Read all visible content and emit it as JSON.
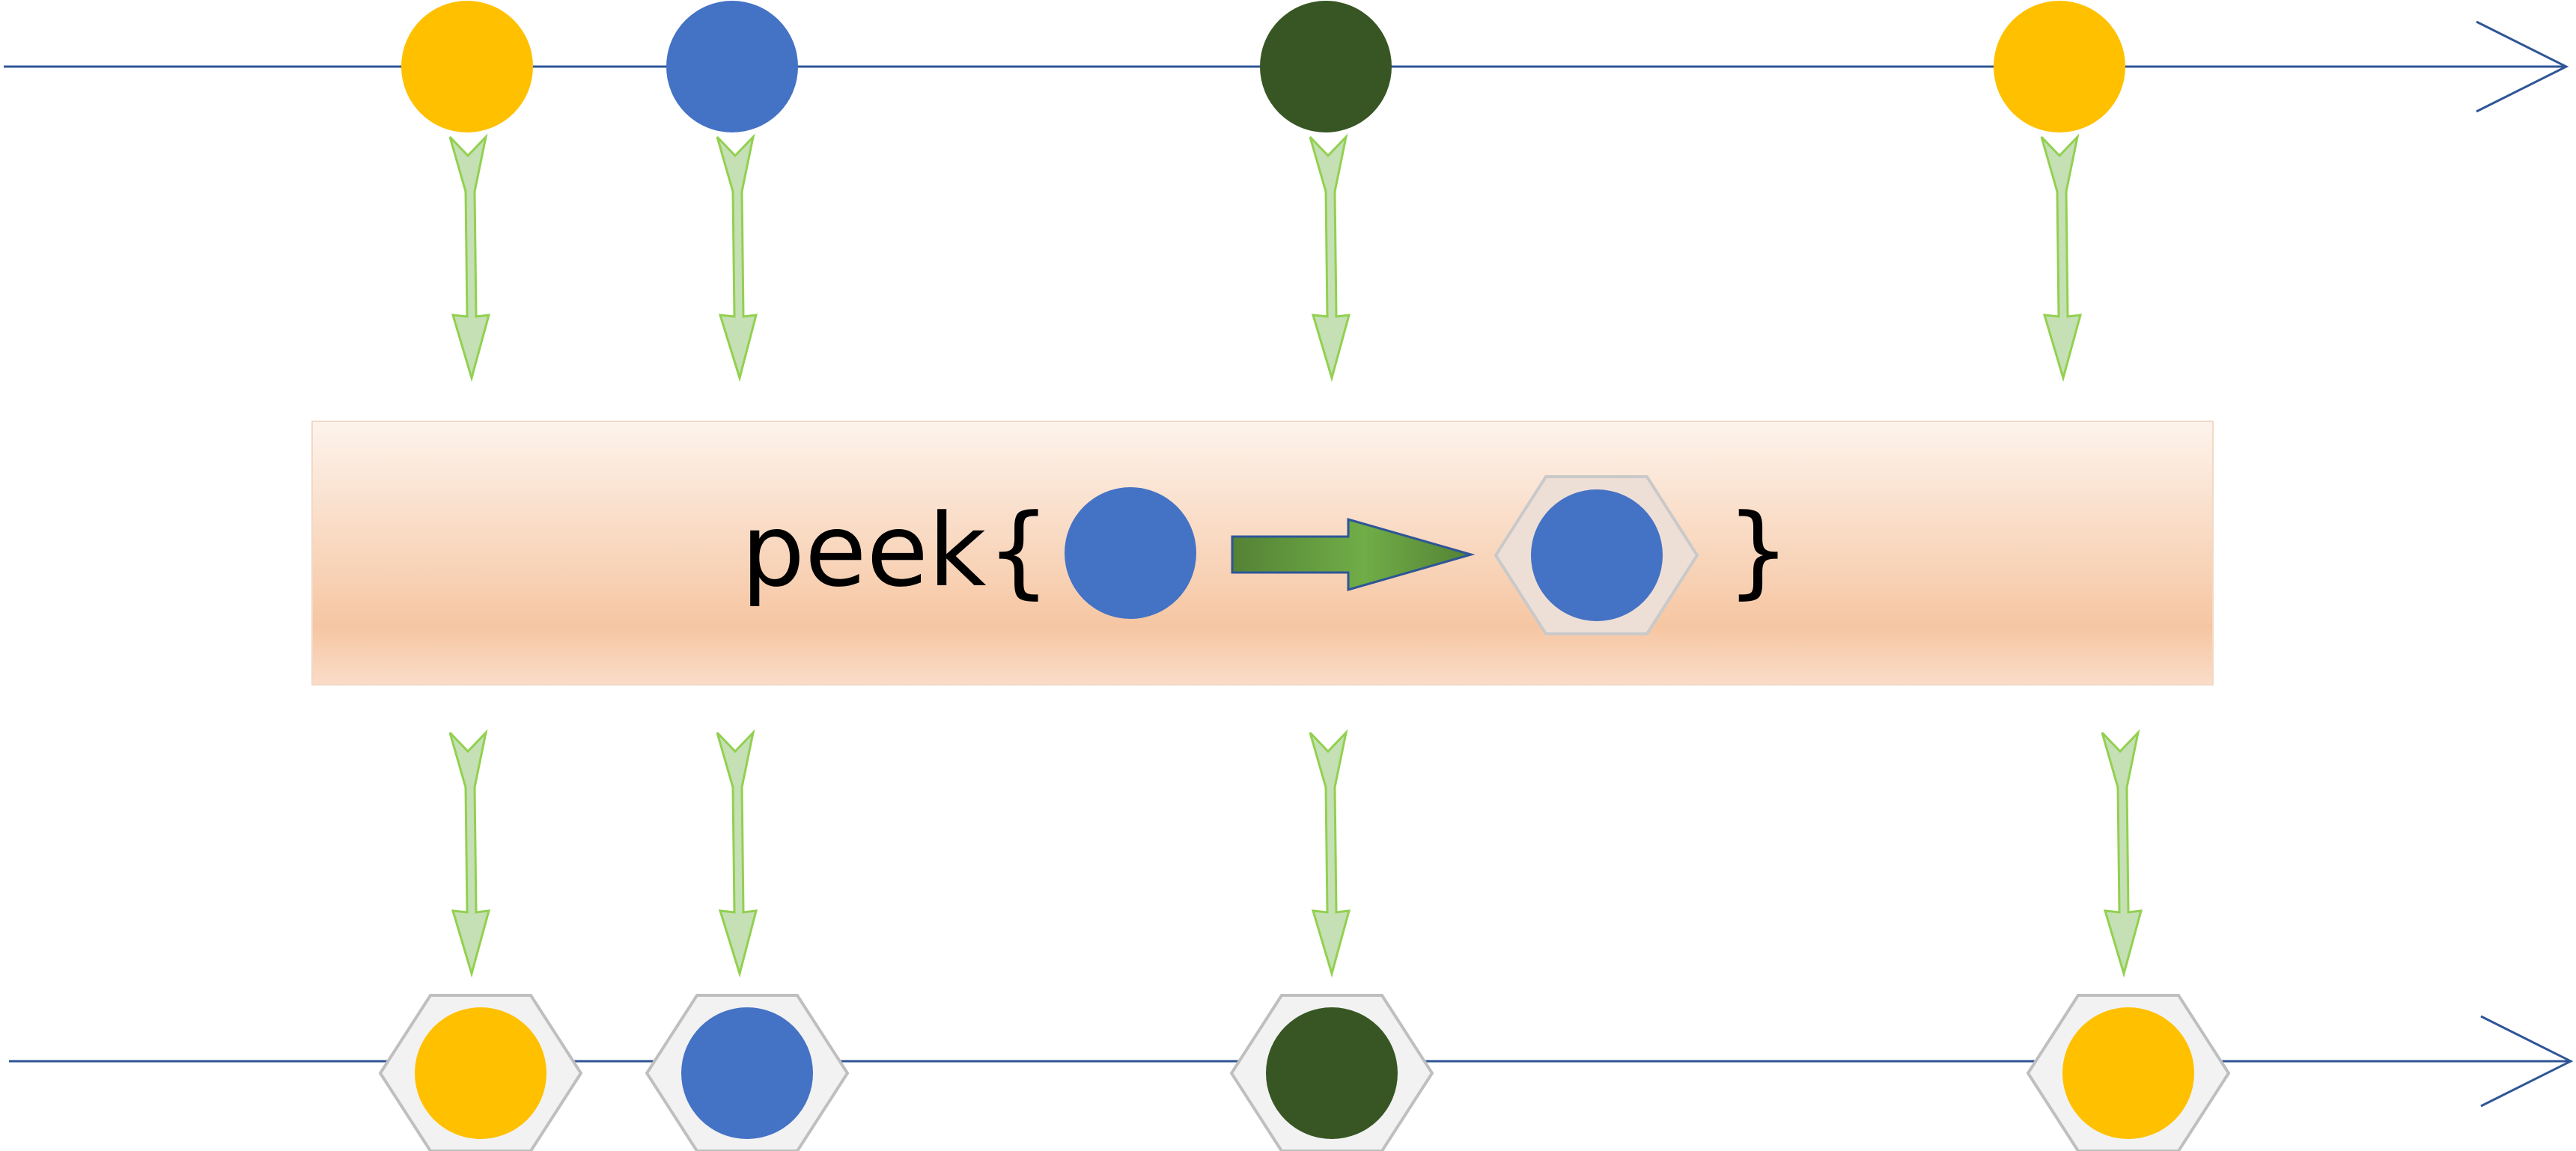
{
  "operator": {
    "name": "peek",
    "open_brace": "{",
    "close_brace": "}",
    "input_marble_color": "#4472C4",
    "output_marble_color": "#4472C4"
  },
  "colors": {
    "timeline": "#2F5597",
    "yellow": "#FFC000",
    "blue": "#4472C4",
    "dark_green": "#375623",
    "flow_arrow": "#A9D18E",
    "hexagon_fill": "#F2F2F2",
    "hexagon_stroke": "#BFBFBF",
    "operator_box_top": "#FDF3EC",
    "operator_box_mid": "#F6C6A2"
  },
  "input_stream": {
    "marbles": [
      {
        "color": "yellow"
      },
      {
        "color": "blue"
      },
      {
        "color": "dark_green"
      },
      {
        "color": "yellow"
      }
    ]
  },
  "output_stream": {
    "marbles": [
      {
        "color": "yellow",
        "wrapped": true
      },
      {
        "color": "blue",
        "wrapped": true
      },
      {
        "color": "dark_green",
        "wrapped": true
      },
      {
        "color": "yellow",
        "wrapped": true
      }
    ]
  }
}
